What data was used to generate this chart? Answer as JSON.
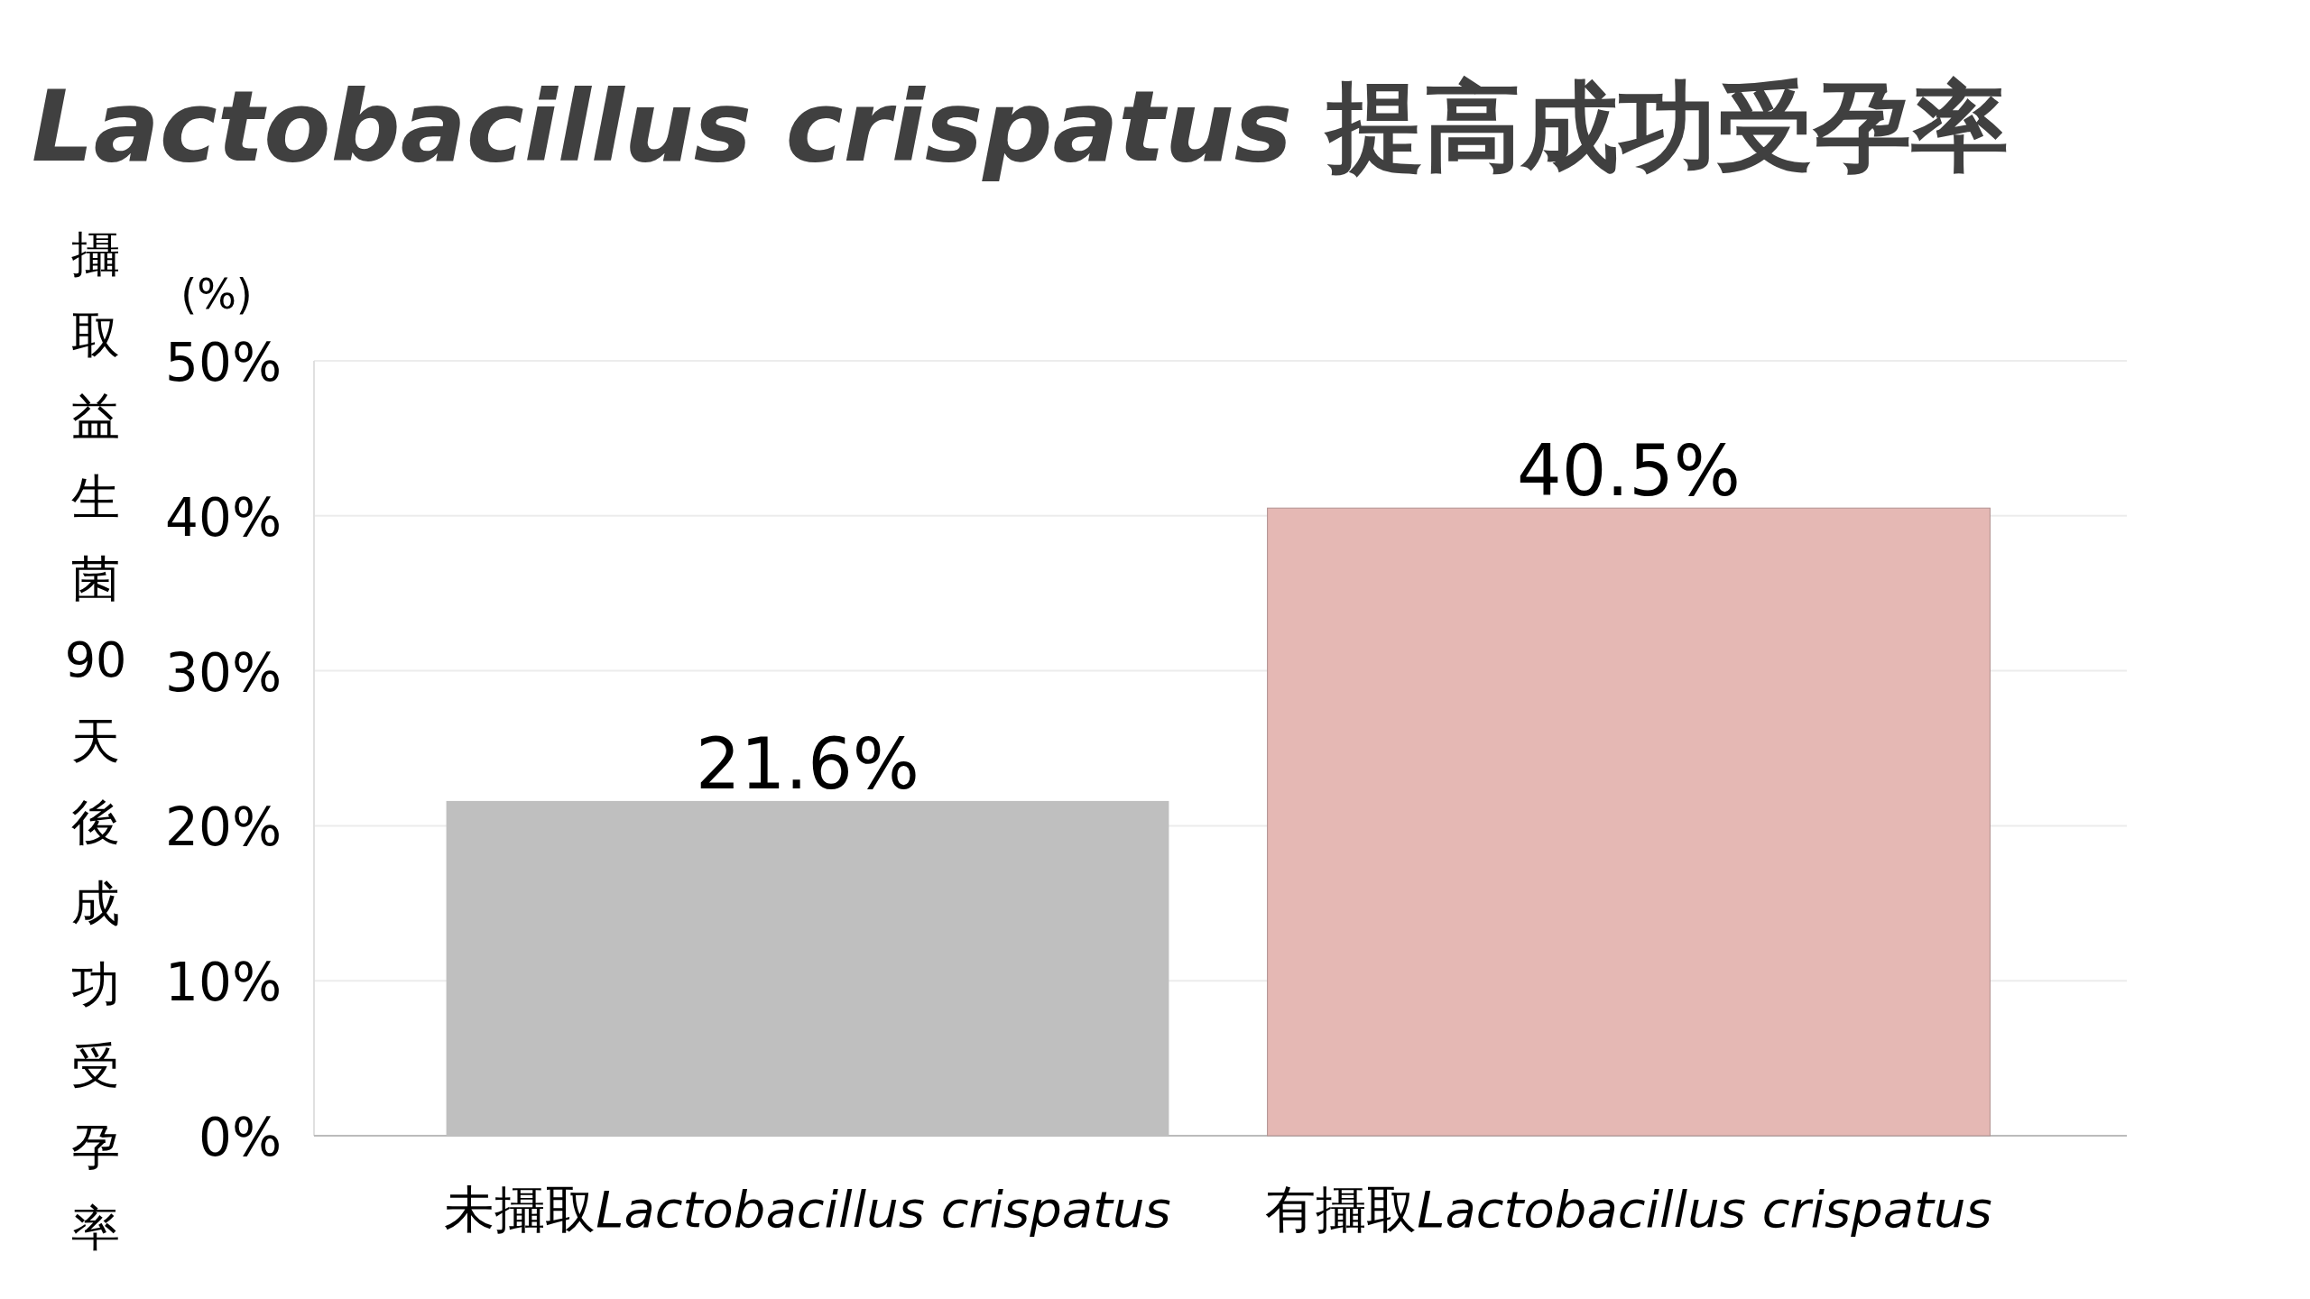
{
  "chart_data": {
    "type": "bar",
    "title": "Lactobacillus crispatus 提高成功受孕率",
    "ylabel": "攝取益生菌90天後成功受孕率",
    "annotations": [
      "(%)"
    ],
    "categories": [
      "未攝取Lactobacillus crispatus",
      "有攝取Lactobacillus crispatus"
    ],
    "values": [
      21.6,
      40.5
    ],
    "colors": [
      "#bfbfbf",
      "#e5b8b4"
    ],
    "value_labels": [
      "21.6%",
      "40.5%"
    ],
    "ylim": [
      0,
      50
    ],
    "yticks": [
      {
        "value": 0,
        "label": "0%"
      },
      {
        "value": 10,
        "label": "10%"
      },
      {
        "value": 20,
        "label": "20%"
      },
      {
        "value": 30,
        "label": "30%"
      },
      {
        "value": 40,
        "label": "40%"
      },
      {
        "value": 50,
        "label": "50%"
      }
    ],
    "grid": "y"
  }
}
